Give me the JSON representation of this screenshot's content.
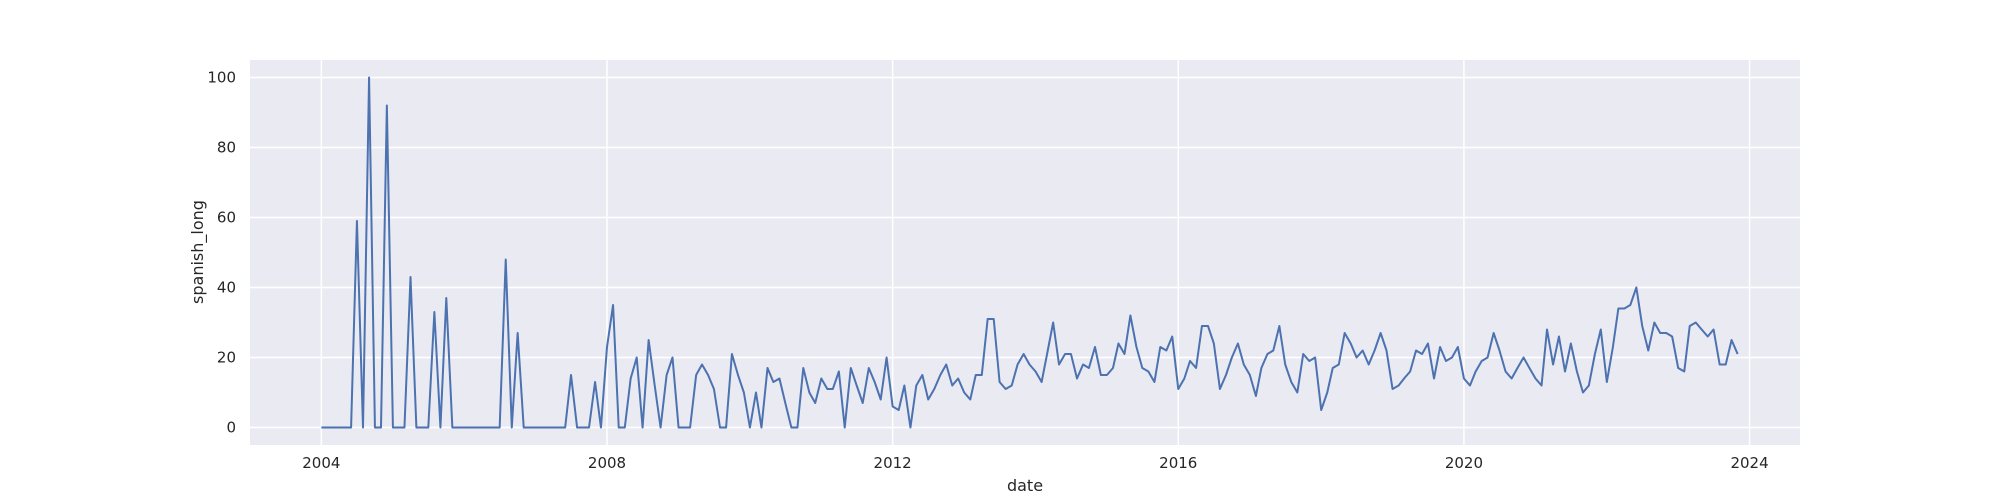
{
  "chart_data": {
    "type": "line",
    "xlabel": "date",
    "ylabel": "spanish_long",
    "xlim": [
      "2003-01-01",
      "2024-09-15"
    ],
    "ylim": [
      -5,
      105
    ],
    "x_ticks": [
      "2004",
      "2008",
      "2012",
      "2016",
      "2020",
      "2024"
    ],
    "y_ticks": [
      0,
      20,
      40,
      60,
      80,
      100
    ],
    "grid": true,
    "background_color": "#eaeaf2",
    "grid_color": "#ffffff",
    "line_color": "#4c72b0",
    "series": [
      {
        "x_start": "2004-01",
        "frequency": "monthly",
        "values": [
          0,
          0,
          0,
          0,
          0,
          0,
          59,
          0,
          100,
          0,
          0,
          92,
          0,
          0,
          0,
          43,
          0,
          0,
          0,
          33,
          0,
          37,
          0,
          0,
          0,
          0,
          0,
          0,
          0,
          0,
          0,
          48,
          0,
          27,
          0,
          0,
          0,
          0,
          0,
          0,
          0,
          0,
          15,
          0,
          0,
          0,
          13,
          0,
          23,
          35,
          0,
          0,
          14,
          20,
          0,
          25,
          12,
          0,
          15,
          20,
          0,
          0,
          0,
          15,
          18,
          15,
          11,
          0,
          0,
          21,
          15,
          10,
          0,
          10,
          0,
          17,
          13,
          14,
          7,
          0,
          0,
          17,
          10,
          7,
          14,
          11,
          11,
          16,
          0,
          17,
          12,
          7,
          17,
          13,
          8,
          20,
          6,
          5,
          12,
          0,
          12,
          15,
          8,
          11,
          15,
          18,
          12,
          14,
          10,
          8,
          15,
          15,
          31,
          31,
          13,
          11,
          12,
          18,
          21,
          18,
          16,
          13,
          21,
          30,
          18,
          21,
          21,
          14,
          18,
          17,
          23,
          15,
          15,
          17,
          24,
          21,
          32,
          23,
          17,
          16,
          13,
          23,
          22,
          26,
          11,
          14,
          19,
          17,
          29,
          29,
          24,
          11,
          15,
          20,
          24,
          18,
          15,
          9,
          17,
          21,
          22,
          29,
          18,
          13,
          10,
          21,
          19,
          20,
          5,
          10,
          17,
          18,
          27,
          24,
          20,
          22,
          18,
          22,
          27,
          22,
          11,
          12,
          14,
          16,
          22,
          21,
          24,
          14,
          23,
          19,
          20,
          23,
          14,
          12,
          16,
          19,
          20,
          27,
          22,
          16,
          14,
          17,
          20,
          17,
          14,
          12,
          28,
          18,
          26,
          16,
          24,
          16,
          10,
          12,
          21,
          28,
          13,
          23,
          34,
          34,
          35,
          40,
          29,
          22,
          30,
          27,
          27,
          26,
          17,
          16,
          29,
          30,
          28,
          26,
          28,
          18,
          18,
          25,
          21
        ]
      }
    ]
  }
}
